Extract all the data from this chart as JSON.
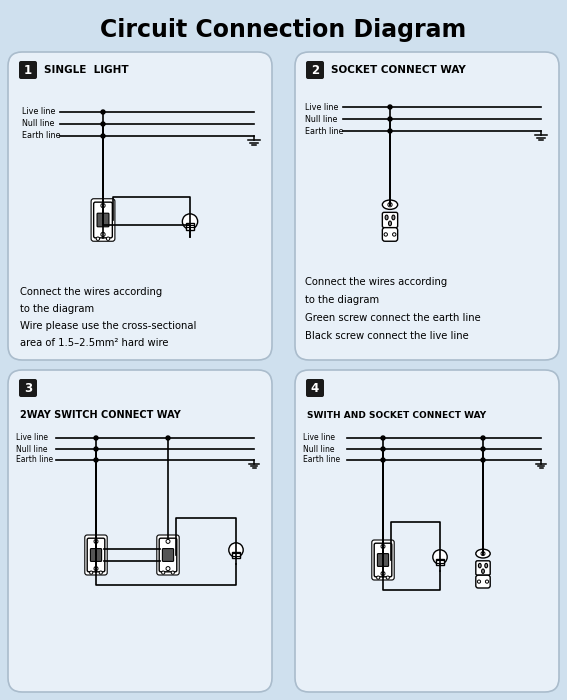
{
  "title": "Circuit Connection Diagram",
  "bg_color": "#cfe0ee",
  "panel_bg": "#e8f0f8",
  "panel_border": "#aabccc",
  "title_fontsize": 17,
  "panels": [
    {
      "number": "1",
      "title": "SINGLE  LIGHT",
      "lines": [
        "Live line",
        "Null line",
        "Earth line"
      ],
      "text": [
        "Connect the wires according",
        "to the diagram",
        "Wire please use the cross-sectional",
        "area of 1.5–2.5mm² hard wire"
      ],
      "type": "switch_light"
    },
    {
      "number": "2",
      "title": "SOCKET CONNECT WAY",
      "lines": [
        "Live line",
        "Null line",
        "Earth line"
      ],
      "text": [
        "Connect the wires according",
        "to the diagram",
        "Green screw connect the earth line",
        "Black screw connect the live line"
      ],
      "type": "socket"
    },
    {
      "number": "3",
      "title": "2WAY SWITCH CONNECT WAY",
      "lines": [
        "Live line",
        "Null line",
        "Earth line"
      ],
      "text": [],
      "type": "switch2_light"
    },
    {
      "number": "4",
      "title": "SWITH AND SOCKET CONNECT WAY",
      "lines": [
        "Live line",
        "Null line",
        "Earth line"
      ],
      "text": [],
      "type": "switch_socket_light"
    }
  ]
}
